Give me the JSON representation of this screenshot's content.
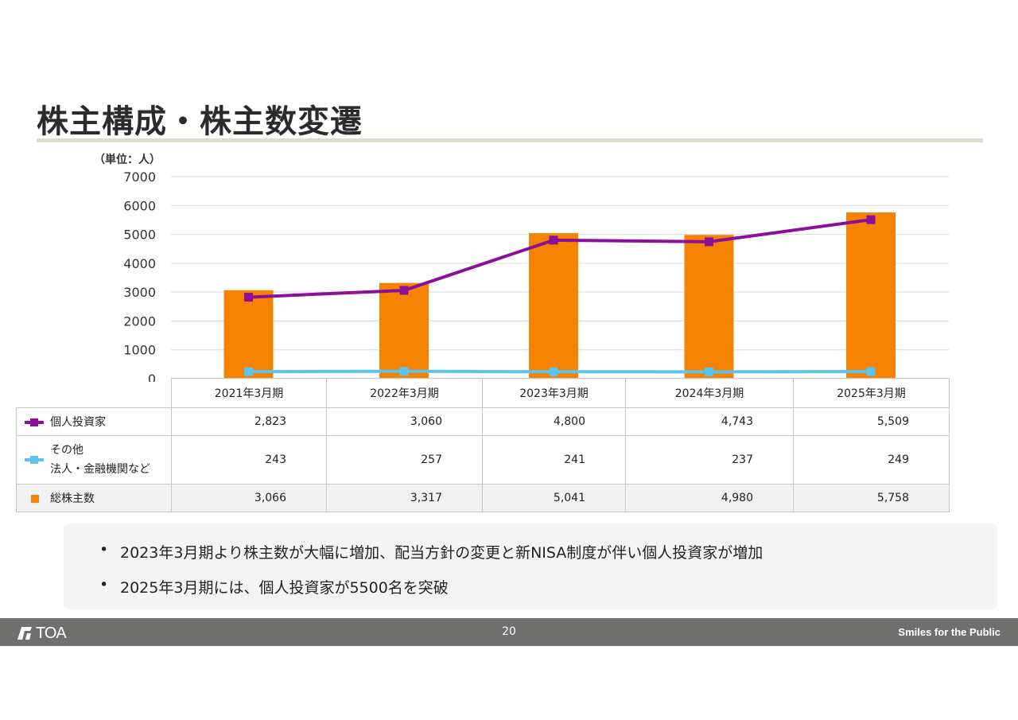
{
  "page": {
    "title": "株主構成・株主数変遷",
    "unit_label": "（単位：人）",
    "page_number": "20",
    "logo_text": "TOA",
    "slogan": "Smiles for the Public"
  },
  "colors": {
    "individual": "#8b0f9a",
    "other": "#5bc3ef",
    "total": "#f58200",
    "grid": "#d9d9d9"
  },
  "chart_data": {
    "type": "bar",
    "categories": [
      "2021年3月期",
      "2022年3月期",
      "2023年3月期",
      "2024年3月期",
      "2025年3月期"
    ],
    "ylim": [
      0,
      7000
    ],
    "yticks": [
      0,
      1000,
      2000,
      3000,
      4000,
      5000,
      6000,
      7000
    ],
    "grid": true,
    "series": [
      {
        "name": "個人投資家",
        "kind": "line",
        "values": [
          2823,
          3060,
          4800,
          4743,
          5509
        ]
      },
      {
        "name_lines": [
          "その他",
          "法人・金融機関など"
        ],
        "kind": "line",
        "values": [
          243,
          257,
          241,
          237,
          249
        ]
      },
      {
        "name": "総株主数",
        "kind": "bar",
        "values": [
          3066,
          3317,
          5041,
          4980,
          5758
        ]
      }
    ]
  },
  "table": {
    "rows": [
      {
        "values": [
          "2,823",
          "3,060",
          "4,800",
          "4,743",
          "5,509"
        ]
      },
      {
        "values": [
          "243",
          "257",
          "241",
          "237",
          "249"
        ]
      },
      {
        "values": [
          "3,066",
          "3,317",
          "5,041",
          "4,980",
          "5,758"
        ]
      }
    ]
  },
  "notes": [
    "2023年3月期より株主数が大幅に増加、配当方針の変更と新NISA制度が伴い個人投資家が増加",
    "2025年3月期には、個人投資家が5500名を突破"
  ]
}
